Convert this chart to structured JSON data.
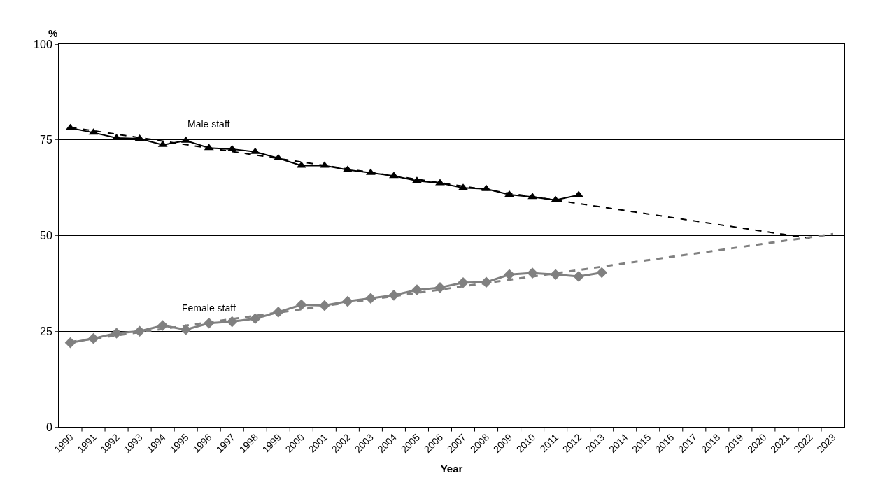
{
  "chart_data": {
    "type": "line",
    "xlabel": "Year",
    "ylabel": "%",
    "categories": [
      "1990",
      "1991",
      "1992",
      "1993",
      "1994",
      "1995",
      "1996",
      "1997",
      "1998",
      "1999",
      "2000",
      "2001",
      "2002",
      "2003",
      "2004",
      "2005",
      "2006",
      "2007",
      "2008",
      "2009",
      "2010",
      "2011",
      "2012",
      "2013",
      "2014",
      "2015",
      "2016",
      "2017",
      "2018",
      "2019",
      "2020",
      "2021",
      "2022",
      "2023"
    ],
    "series": [
      {
        "name": "Male staff",
        "color": "#000000",
        "marker": "triangle",
        "line_style": "solid",
        "values": [
          78.1,
          76.9,
          75.5,
          75.3,
          73.7,
          74.8,
          72.9,
          72.6,
          71.9,
          70.2,
          68.3,
          68.3,
          67.2,
          66.4,
          65.6,
          64.3,
          63.7,
          62.5,
          62.2,
          60.7,
          60.1,
          59.3,
          60.6,
          null,
          null,
          null,
          null,
          null,
          null,
          null,
          null,
          null,
          null,
          null
        ]
      },
      {
        "name": "Female staff",
        "color": "#808080",
        "marker": "diamond",
        "line_style": "solid",
        "values": [
          22.0,
          23.1,
          24.5,
          25.0,
          26.5,
          25.4,
          27.1,
          27.5,
          28.3,
          30.0,
          31.9,
          31.7,
          32.8,
          33.6,
          34.4,
          35.8,
          36.4,
          37.7,
          37.8,
          39.8,
          40.2,
          39.8,
          39.3,
          40.3,
          null,
          null,
          null,
          null,
          null,
          null,
          null,
          null,
          null,
          null
        ]
      },
      {
        "type": "line",
        "color": "#000000",
        "marker": "none",
        "line_style": "dashed",
        "values": [
          78.3,
          null,
          null,
          null,
          null,
          null,
          null,
          null,
          null,
          null,
          null,
          null,
          null,
          null,
          null,
          null,
          null,
          null,
          null,
          null,
          null,
          null,
          null,
          null,
          null,
          null,
          null,
          null,
          null,
          null,
          null,
          null,
          49.3,
          null
        ]
      },
      {
        "type": "line",
        "color": "#808080",
        "marker": "none",
        "line_style": "dashed",
        "values": [
          22.2,
          null,
          null,
          null,
          null,
          null,
          null,
          null,
          null,
          null,
          null,
          null,
          null,
          null,
          null,
          null,
          null,
          null,
          null,
          null,
          null,
          null,
          null,
          null,
          null,
          null,
          null,
          null,
          null,
          null,
          null,
          null,
          null,
          50.4
        ]
      }
    ],
    "ylim": [
      0,
      100
    ],
    "yticks": [
      0,
      25,
      50,
      75,
      100
    ],
    "grid": "y",
    "legend": false
  }
}
